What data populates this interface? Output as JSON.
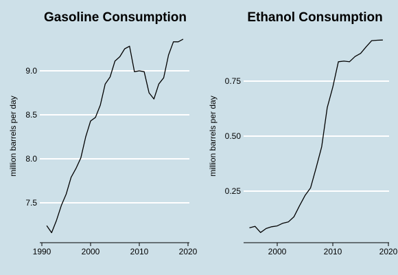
{
  "chart_data": [
    {
      "type": "line",
      "title": "Gasoline Consumption",
      "ylabel": "million barrels per day",
      "xlabel": "",
      "xlim": [
        1990,
        2020
      ],
      "ylim": [
        7.05,
        9.45
      ],
      "xticks": [
        1990,
        2000,
        2010,
        2020
      ],
      "xtick_labels": [
        "1990",
        "2000",
        "2010",
        "2020"
      ],
      "yticks": [
        7.5,
        8.0,
        8.5,
        9.0
      ],
      "ytick_labels": [
        "7.5",
        "8.0",
        "8.5",
        "9.0"
      ],
      "grid": "horizontal",
      "series": [
        {
          "color": "#000000",
          "x": [
            1991,
            1992,
            1993,
            1994,
            1995,
            1996,
            1997,
            1998,
            1999,
            2000,
            2001,
            2002,
            2003,
            2004,
            2005,
            2006,
            2007,
            2008,
            2009,
            2010,
            2011,
            2012,
            2013,
            2014,
            2015,
            2016,
            2017,
            2018,
            2019
          ],
          "y": [
            7.24,
            7.16,
            7.3,
            7.47,
            7.6,
            7.79,
            7.89,
            8.01,
            8.25,
            8.43,
            8.47,
            8.61,
            8.85,
            8.93,
            9.11,
            9.16,
            9.25,
            9.28,
            8.99,
            9.0,
            8.99,
            8.75,
            8.68,
            8.85,
            8.92,
            9.18,
            9.33,
            9.33,
            9.36
          ]
        }
      ]
    },
    {
      "type": "line",
      "title": "Ethanol Consumption",
      "ylabel": "million barrels per day",
      "xlabel": "",
      "xlim": [
        1994,
        2020
      ],
      "ylim": [
        0.0,
        0.95
      ],
      "xticks": [
        2000,
        2010,
        2020
      ],
      "xtick_labels": [
        "2000",
        "2010",
        "2020"
      ],
      "yticks": [
        0.25,
        0.5,
        0.75
      ],
      "ytick_labels": [
        "0.25",
        "0.50",
        "0.75"
      ],
      "grid": "horizontal",
      "series": [
        {
          "color": "#000000",
          "x": [
            1995,
            1996,
            1997,
            1998,
            1999,
            2000,
            2001,
            2002,
            2003,
            2004,
            2005,
            2006,
            2007,
            2008,
            2009,
            2010,
            2011,
            2012,
            2013,
            2014,
            2015,
            2016,
            2017,
            2018,
            2019
          ],
          "y": [
            0.083,
            0.09,
            0.062,
            0.08,
            0.088,
            0.092,
            0.104,
            0.11,
            0.133,
            0.183,
            0.23,
            0.265,
            0.356,
            0.452,
            0.63,
            0.723,
            0.838,
            0.841,
            0.838,
            0.862,
            0.876,
            0.906,
            0.934,
            0.936,
            0.937
          ]
        }
      ]
    }
  ]
}
